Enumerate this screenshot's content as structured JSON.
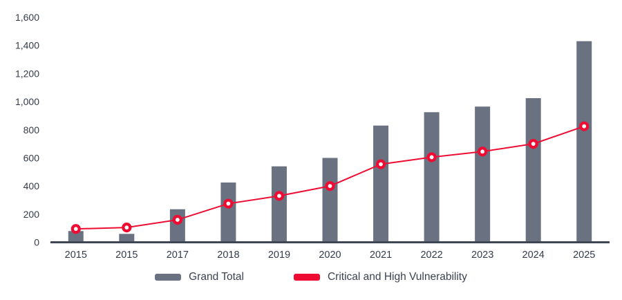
{
  "chart_data": {
    "type": "bar",
    "subtype": "combo-bar-line",
    "title": "",
    "xlabel": "",
    "ylabel": "",
    "categories": [
      "2015",
      "2015",
      "2017",
      "2018",
      "2019",
      "2020",
      "2021",
      "2022",
      "2023",
      "2024",
      "2025"
    ],
    "series": [
      {
        "name": "Grand Total",
        "type": "bar",
        "color": "#6a7282",
        "values": [
          80,
          60,
          235,
          425,
          540,
          600,
          830,
          925,
          965,
          1025,
          1430
        ]
      },
      {
        "name": "Critical and High Vulnerability",
        "type": "line",
        "color": "#ee0c32",
        "marker": "open-circle",
        "values": [
          95,
          105,
          160,
          275,
          330,
          400,
          555,
          605,
          645,
          700,
          825
        ]
      }
    ],
    "ylim": [
      0,
      1600
    ],
    "ytick_step": 200,
    "ytick_labels": [
      "0",
      "200",
      "400",
      "600",
      "800",
      "1,000",
      "1,200",
      "1,400",
      "1,600"
    ],
    "grid": false,
    "legend_position": "bottom-center"
  },
  "style": {
    "axis_line_color": "#3e4553",
    "tick_label_color": "#333b49",
    "background": "#ffffff"
  }
}
